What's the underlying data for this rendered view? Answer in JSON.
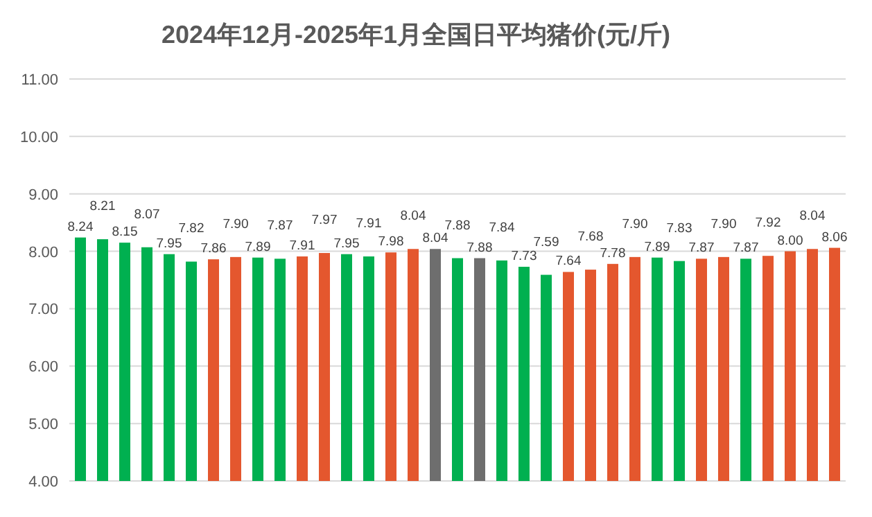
{
  "chart_data": {
    "type": "bar",
    "title": "2024年12月-2025年1月全国日平均猪价(元/斤)",
    "categories": [
      null,
      null,
      null,
      null,
      null,
      null,
      null,
      null,
      null,
      null,
      null,
      null,
      null,
      null,
      null,
      null,
      null,
      null,
      null,
      null,
      null,
      null,
      null,
      null,
      null,
      null,
      null,
      null,
      null,
      null,
      null,
      null,
      null,
      null,
      null
    ],
    "values": [
      8.24,
      8.21,
      8.15,
      8.07,
      7.95,
      7.82,
      7.86,
      7.9,
      7.89,
      7.87,
      7.91,
      7.97,
      7.95,
      7.91,
      7.98,
      8.04,
      8.04,
      7.88,
      7.88,
      7.84,
      7.73,
      7.59,
      7.64,
      7.68,
      7.78,
      7.9,
      7.89,
      7.83,
      7.87,
      7.9,
      7.87,
      7.92,
      8.0,
      8.04,
      8.06
    ],
    "value_labels": [
      "8.24",
      "8.21",
      "8.15",
      "8.07",
      "7.95",
      "7.82",
      "7.86",
      "7.90",
      "7.89",
      "7.87",
      "7.91",
      "7.97",
      "7.95",
      "7.91",
      "7.98",
      "8.04",
      "8.04",
      "7.88",
      "7.88",
      "7.84",
      "7.73",
      "7.59",
      "7.64",
      "7.68",
      "7.78",
      "7.90",
      "7.89",
      "7.83",
      "7.87",
      "7.90",
      "7.87",
      "7.92",
      "8.00",
      "8.04",
      "8.06"
    ],
    "colors": [
      "#00b050",
      "#00b050",
      "#00b050",
      "#00b050",
      "#00b050",
      "#00b050",
      "#e4572e",
      "#e4572e",
      "#00b050",
      "#00b050",
      "#e4572e",
      "#e4572e",
      "#00b050",
      "#00b050",
      "#e4572e",
      "#e4572e",
      "#6e6e6e",
      "#00b050",
      "#6e6e6e",
      "#00b050",
      "#00b050",
      "#00b050",
      "#e4572e",
      "#e4572e",
      "#e4572e",
      "#e4572e",
      "#00b050",
      "#00b050",
      "#e4572e",
      "#e4572e",
      "#00b050",
      "#e4572e",
      "#e4572e",
      "#e4572e",
      "#e4572e"
    ],
    "ylim": [
      4,
      11
    ],
    "yticks": [
      {
        "value": 4,
        "label": "4.00"
      },
      {
        "value": 5,
        "label": "5.00"
      },
      {
        "value": 6,
        "label": "6.00"
      },
      {
        "value": 7,
        "label": "7.00"
      },
      {
        "value": 8,
        "label": "8.00"
      },
      {
        "value": 9,
        "label": "9.00"
      },
      {
        "value": 10,
        "label": "10.00"
      },
      {
        "value": 11,
        "label": "11.00"
      }
    ],
    "grid": "y"
  }
}
